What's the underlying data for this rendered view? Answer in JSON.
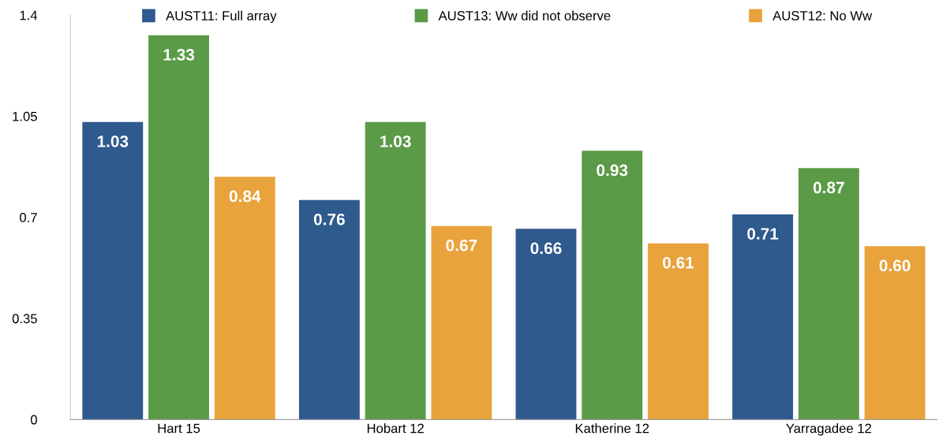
{
  "chart_data": {
    "type": "bar",
    "categories": [
      "Hart 15",
      "Hobart 12",
      "Katherine 12",
      "Yarragadee 12"
    ],
    "series": [
      {
        "name": "AUST11: Full array",
        "color": "#2e5a8e",
        "values": [
          1.03,
          0.76,
          0.66,
          0.71
        ],
        "value_labels": [
          "1.03",
          "0.76",
          "0.66",
          "0.71"
        ]
      },
      {
        "name": "AUST13: Ww did not observe",
        "color": "#5b9a47",
        "values": [
          1.33,
          1.03,
          0.93,
          0.87
        ],
        "value_labels": [
          "1.33",
          "1.03",
          "0.93",
          "0.87"
        ]
      },
      {
        "name": "AUST12: No Ww",
        "color": "#e8a33c",
        "values": [
          0.84,
          0.67,
          0.61,
          0.6
        ],
        "value_labels": [
          "0.84",
          "0.67",
          "0.61",
          "0.60"
        ]
      }
    ],
    "ylim": [
      0,
      1.4
    ],
    "yticks": [
      0,
      0.35,
      0.7,
      1.05,
      1.4
    ],
    "grid": false,
    "legend": "top"
  }
}
